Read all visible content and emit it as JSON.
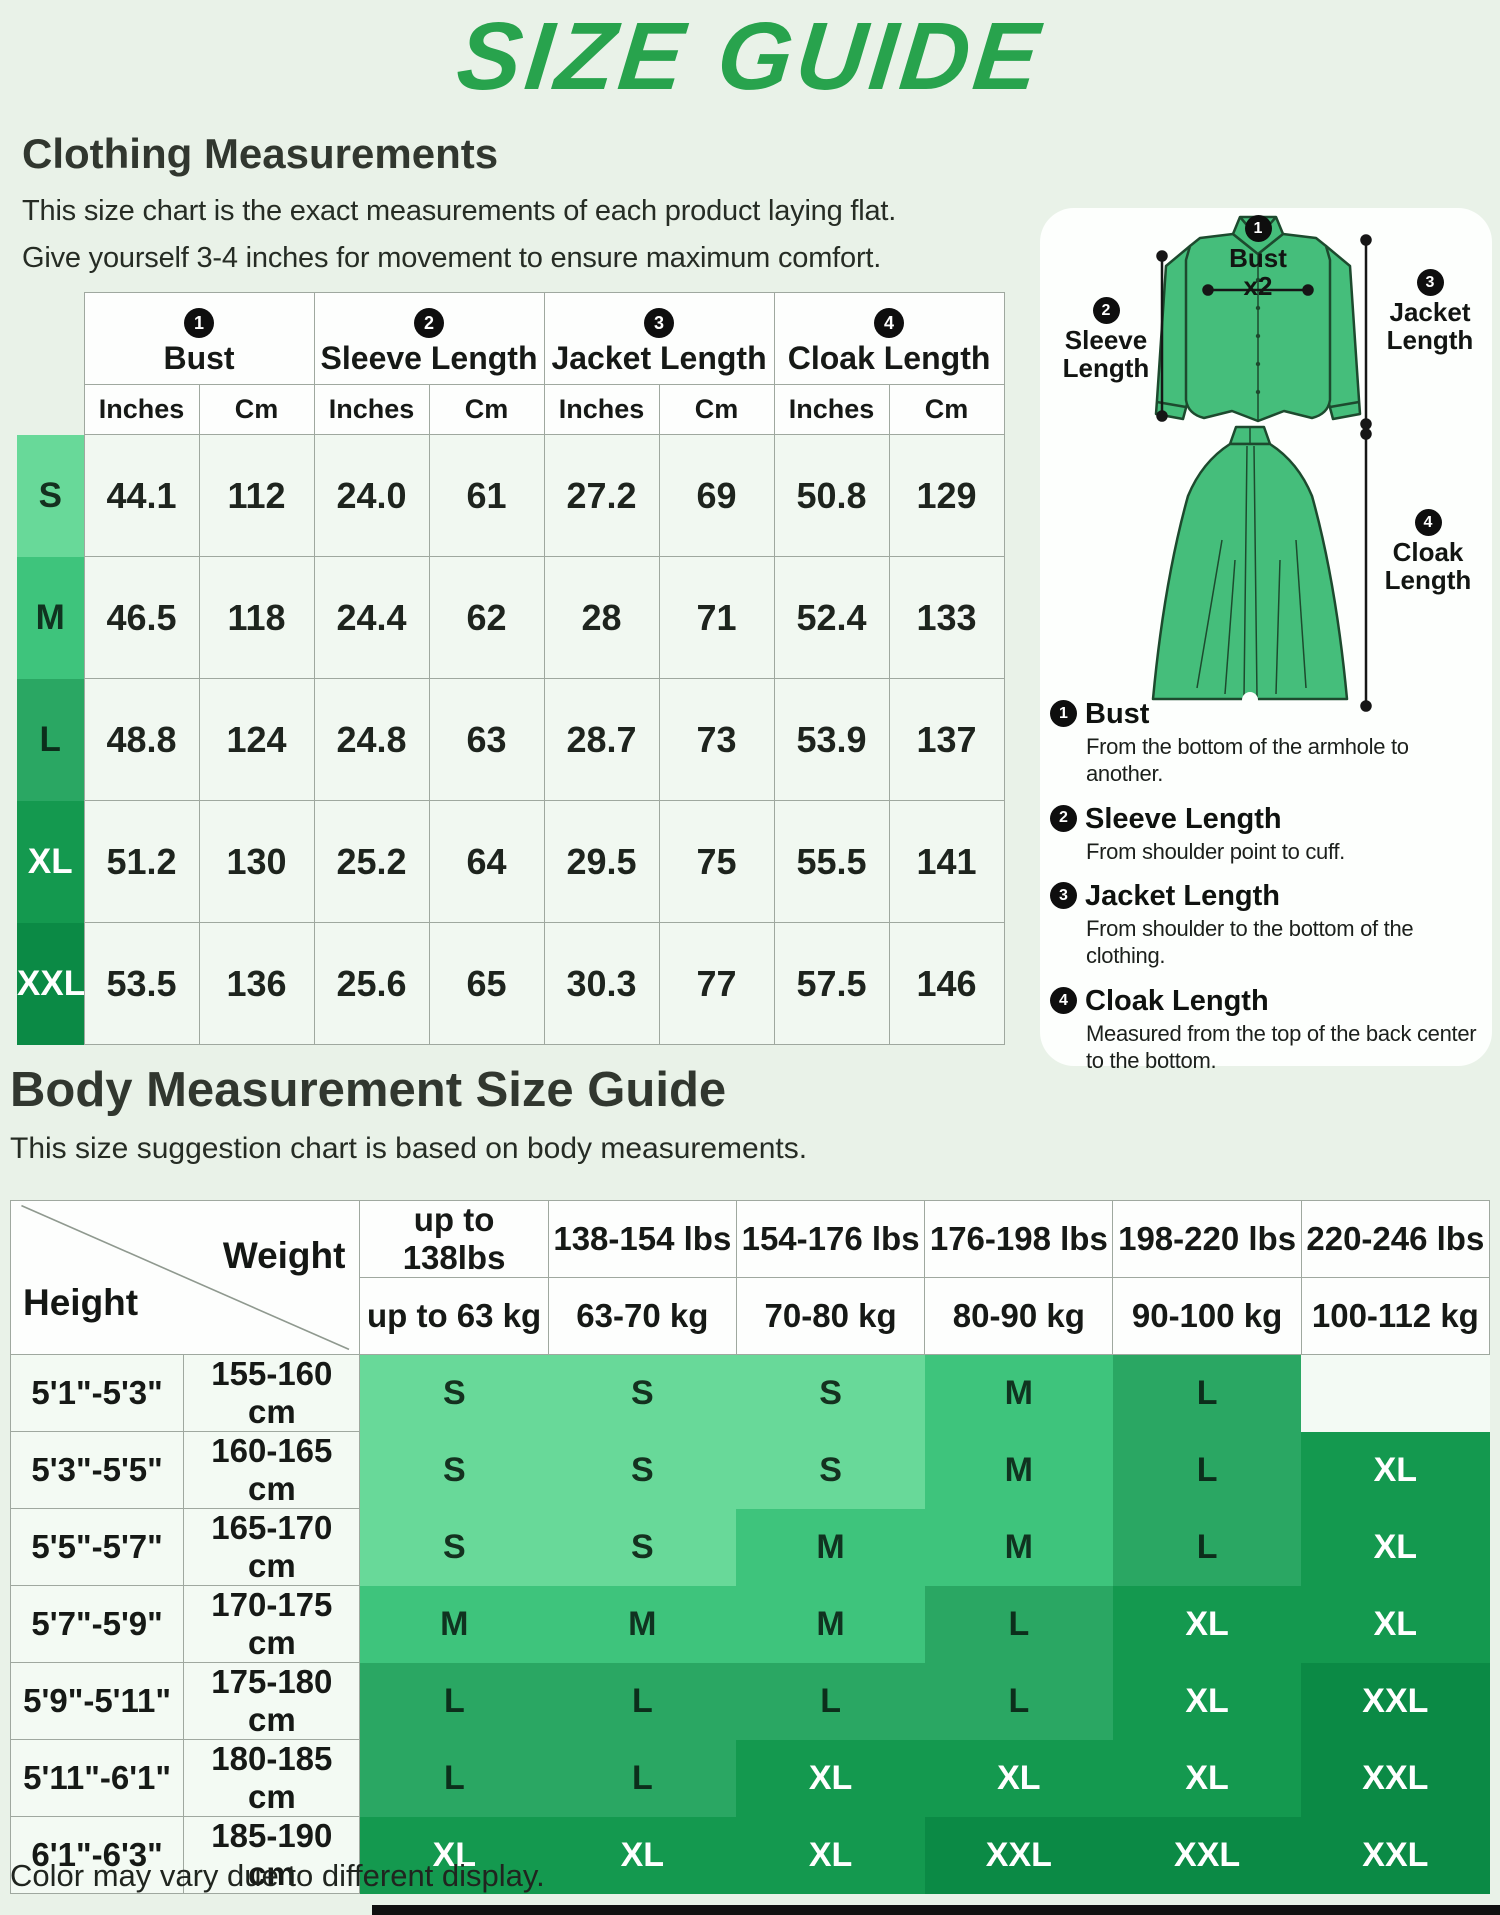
{
  "page": {
    "title": "SIZE GUIDE",
    "footer_note": "Color may vary due to different display.",
    "background": "#e9f2e8",
    "accent_green": "#28a34d"
  },
  "clothing_section": {
    "heading": "Clothing Measurements",
    "description_line1": "This size chart is the exact measurements of each product laying flat.",
    "description_line2": "Give yourself 3-4 inches for movement to ensure maximum comfort.",
    "table": {
      "column_groups": [
        {
          "number": "1",
          "label": "Bust"
        },
        {
          "number": "2",
          "label": "Sleeve Length"
        },
        {
          "number": "3",
          "label": "Jacket Length"
        },
        {
          "number": "4",
          "label": "Cloak Length"
        }
      ],
      "unit_headers": [
        "Inches",
        "Cm",
        "Inches",
        "Cm",
        "Inches",
        "Cm",
        "Inches",
        "Cm"
      ],
      "rows": [
        {
          "size": "S",
          "values": [
            "44.1",
            "112",
            "24.0",
            "61",
            "27.2",
            "69",
            "50.8",
            "129"
          ]
        },
        {
          "size": "M",
          "values": [
            "46.5",
            "118",
            "24.4",
            "62",
            "28",
            "71",
            "52.4",
            "133"
          ]
        },
        {
          "size": "L",
          "values": [
            "48.8",
            "124",
            "24.8",
            "63",
            "28.7",
            "73",
            "53.9",
            "137"
          ]
        },
        {
          "size": "XL",
          "values": [
            "51.2",
            "130",
            "25.2",
            "64",
            "29.5",
            "75",
            "55.5",
            "141"
          ]
        },
        {
          "size": "XXL",
          "values": [
            "53.5",
            "136",
            "25.6",
            "65",
            "30.3",
            "77",
            "57.5",
            "146"
          ]
        }
      ]
    }
  },
  "diagram": {
    "garment_color": "#45be7b",
    "shirt_labels": {
      "bust": {
        "number": "1",
        "line1": "Bust",
        "line2": "x2"
      },
      "sleeve": {
        "number": "2",
        "line1": "Sleeve",
        "line2": "Length"
      },
      "jacket": {
        "number": "3",
        "line1": "Jacket",
        "line2": "Length"
      },
      "cloak": {
        "number": "4",
        "line1": "Cloak",
        "line2": "Length"
      }
    },
    "legend": [
      {
        "number": "1",
        "title": "Bust",
        "description": "From the bottom of the armhole to another."
      },
      {
        "number": "2",
        "title": "Sleeve Length",
        "description": "From shoulder point to cuff."
      },
      {
        "number": "3",
        "title": "Jacket Length",
        "description": "From shoulder to the bottom of the clothing."
      },
      {
        "number": "4",
        "title": "Cloak Length",
        "description": "Measured from the top of the back center to the bottom."
      }
    ]
  },
  "body_section": {
    "heading": "Body Measurement Size Guide",
    "description": "This size suggestion chart is based on body measurements.",
    "table": {
      "corner": {
        "weight_label": "Weight",
        "height_label": "Height"
      },
      "weight_lbs": [
        "up to 138lbs",
        "138-154 lbs",
        "154-176 lbs",
        "176-198 lbs",
        "198-220 lbs",
        "220-246 lbs"
      ],
      "weight_kg": [
        "up to 63 kg",
        "63-70 kg",
        "70-80 kg",
        "80-90 kg",
        "90-100 kg",
        "100-112 kg"
      ],
      "rows": [
        {
          "height_ft": "5'1\"-5'3\"",
          "height_cm": "155-160 cm",
          "sizes": [
            "S",
            "S",
            "S",
            "M",
            "L",
            ""
          ]
        },
        {
          "height_ft": "5'3\"-5'5\"",
          "height_cm": "160-165 cm",
          "sizes": [
            "S",
            "S",
            "S",
            "M",
            "L",
            "XL"
          ]
        },
        {
          "height_ft": "5'5\"-5'7\"",
          "height_cm": "165-170 cm",
          "sizes": [
            "S",
            "S",
            "M",
            "M",
            "L",
            "XL"
          ]
        },
        {
          "height_ft": "5'7\"-5'9\"",
          "height_cm": "170-175 cm",
          "sizes": [
            "M",
            "M",
            "M",
            "L",
            "XL",
            "XL"
          ]
        },
        {
          "height_ft": "5'9\"-5'11\"",
          "height_cm": "175-180 cm",
          "sizes": [
            "L",
            "L",
            "L",
            "L",
            "XL",
            "XXL"
          ]
        },
        {
          "height_ft": "5'11\"-6'1\"",
          "height_cm": "180-185 cm",
          "sizes": [
            "L",
            "L",
            "XL",
            "XL",
            "XL",
            "XXL"
          ]
        },
        {
          "height_ft": "6'1\"-6'3\"",
          "height_cm": "185-190 cm",
          "sizes": [
            "XL",
            "XL",
            "XL",
            "XXL",
            "XXL",
            "XXL"
          ]
        }
      ]
    }
  },
  "size_styles": {
    "S": {
      "bg": "#68d999",
      "fg": "#14311f"
    },
    "M": {
      "bg": "#3ec47c",
      "fg": "#103320"
    },
    "L": {
      "bg": "#2aa763",
      "fg": "#0c2e1b"
    },
    "XL": {
      "bg": "#14994f",
      "fg": "#ffffff"
    },
    "XXL": {
      "bg": "#0b8a45",
      "fg": "#ffffff"
    }
  }
}
